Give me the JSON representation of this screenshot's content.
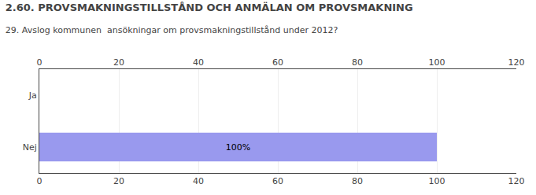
{
  "chart_data": {
    "type": "bar",
    "orientation": "horizontal",
    "title": "2.60. PROVSMAKNINGSTILLSTÅND OCH ANMÄLAN OM PROVSMAKNING",
    "subtitle": "29. Avslog kommunen  ansökningar om provsmakningstillstånd under 2012?",
    "categories": [
      "Ja",
      "Nej"
    ],
    "values": [
      0,
      100
    ],
    "value_labels": [
      null,
      "100%"
    ],
    "data_labels": true,
    "color": "#9999ee",
    "xlim": [
      0,
      120
    ],
    "xticks": [
      0,
      20,
      40,
      60,
      80,
      100,
      120
    ],
    "grid": true
  }
}
